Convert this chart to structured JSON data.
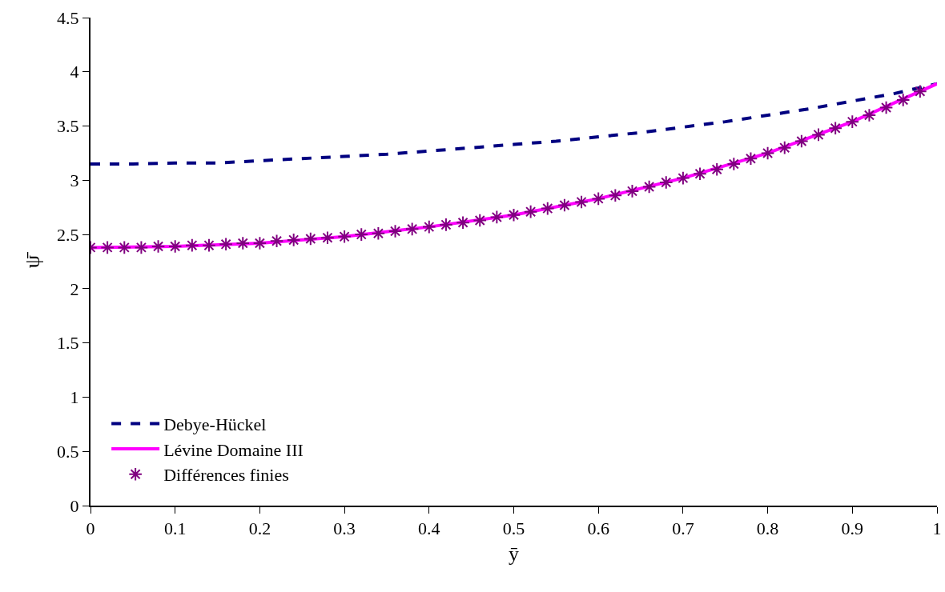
{
  "chart_data": {
    "type": "line",
    "xlabel": "ȳ",
    "ylabel": "ψ̄",
    "xlim": [
      0,
      1
    ],
    "xticks": [
      0,
      0.1,
      0.2,
      0.3,
      0.4,
      0.5,
      0.6,
      0.7,
      0.8,
      0.9,
      1
    ],
    "ylim": [
      0,
      4.5
    ],
    "yticks": [
      0,
      0.5,
      1,
      1.5,
      2,
      2.5,
      3,
      3.5,
      4,
      4.5
    ],
    "grid": false,
    "legend": "bottom left",
    "series": [
      {
        "name": "Debye-Hückel",
        "color": "#000080",
        "line_style": "dashed",
        "marker": "none",
        "x": [
          0,
          0.05,
          0.1,
          0.15,
          0.2,
          0.25,
          0.3,
          0.35,
          0.4,
          0.45,
          0.5,
          0.55,
          0.6,
          0.65,
          0.7,
          0.75,
          0.8,
          0.85,
          0.9,
          0.95,
          1
        ],
        "values": [
          3.15,
          3.15,
          3.16,
          3.16,
          3.18,
          3.2,
          3.22,
          3.24,
          3.27,
          3.3,
          3.33,
          3.36,
          3.4,
          3.44,
          3.49,
          3.54,
          3.6,
          3.66,
          3.73,
          3.8,
          3.89
        ]
      },
      {
        "name": "Lévine Domaine III",
        "color": "#ff00ff",
        "line_style": "solid",
        "marker": "none",
        "x": [
          0,
          0.1,
          0.2,
          0.3,
          0.4,
          0.5,
          0.6,
          0.7,
          0.8,
          0.9,
          1
        ],
        "values": [
          2.38,
          2.39,
          2.42,
          2.48,
          2.57,
          2.68,
          2.83,
          3.02,
          3.25,
          3.54,
          3.89
        ]
      },
      {
        "name": "Différences finies",
        "type": "scatter",
        "color": "#800080",
        "marker": "cross",
        "x": [
          0,
          0.02,
          0.04,
          0.06,
          0.08,
          0.1,
          0.12,
          0.14,
          0.16,
          0.18,
          0.2,
          0.22,
          0.24,
          0.26,
          0.28,
          0.3,
          0.32,
          0.34,
          0.36,
          0.38,
          0.4,
          0.42,
          0.44,
          0.46,
          0.48,
          0.5,
          0.52,
          0.54,
          0.56,
          0.58,
          0.6,
          0.62,
          0.64,
          0.66,
          0.68,
          0.7,
          0.72,
          0.74,
          0.76,
          0.78,
          0.8,
          0.82,
          0.84,
          0.86,
          0.88,
          0.9,
          0.92,
          0.94,
          0.96,
          0.98
        ],
        "values": [
          2.38,
          2.38,
          2.38,
          2.38,
          2.39,
          2.39,
          2.4,
          2.4,
          2.41,
          2.42,
          2.42,
          2.44,
          2.45,
          2.46,
          2.47,
          2.48,
          2.5,
          2.51,
          2.53,
          2.55,
          2.57,
          2.59,
          2.61,
          2.63,
          2.66,
          2.68,
          2.71,
          2.74,
          2.77,
          2.8,
          2.83,
          2.86,
          2.9,
          2.94,
          2.98,
          3.02,
          3.06,
          3.1,
          3.15,
          3.2,
          3.25,
          3.3,
          3.36,
          3.42,
          3.48,
          3.54,
          3.6,
          3.67,
          3.74,
          3.82
        ]
      }
    ]
  }
}
